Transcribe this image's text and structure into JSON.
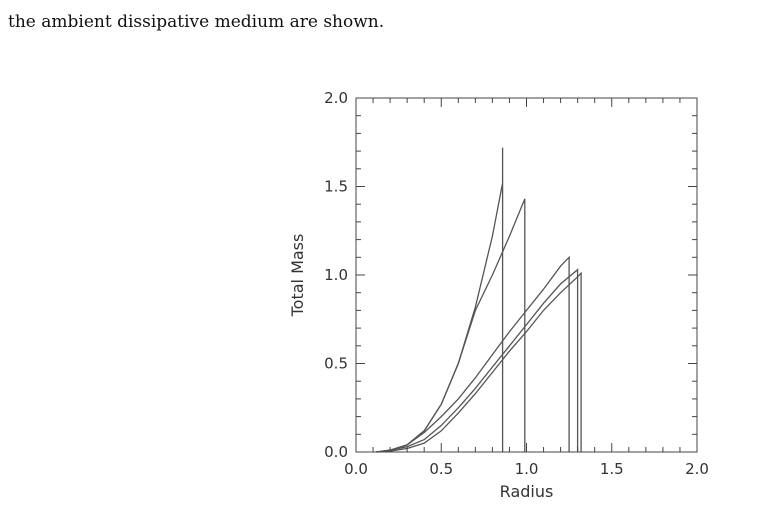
{
  "caption": "the ambient dissipative medium are shown.",
  "chart_data": {
    "type": "line",
    "xlabel": "Radius",
    "ylabel": "Total Mass",
    "xlim": [
      0.0,
      2.0
    ],
    "ylim": [
      0.0,
      2.0
    ],
    "xticks": [
      "0.0",
      "0.5",
      "1.0",
      "1.5",
      "2.0"
    ],
    "yticks": [
      "0.0",
      "0.5",
      "1.0",
      "1.5",
      "2.0"
    ],
    "grid": false,
    "line_color": "#555555",
    "series": [
      {
        "points": [
          [
            0.12,
            0.0
          ],
          [
            0.2,
            0.01
          ],
          [
            0.3,
            0.04
          ],
          [
            0.4,
            0.12
          ],
          [
            0.5,
            0.27
          ],
          [
            0.6,
            0.5
          ],
          [
            0.7,
            0.82
          ],
          [
            0.8,
            1.22
          ],
          [
            0.86,
            1.52
          ],
          [
            0.86,
            1.72
          ],
          [
            0.86,
            0.0
          ]
        ]
      },
      {
        "points": [
          [
            0.12,
            0.0
          ],
          [
            0.2,
            0.01
          ],
          [
            0.3,
            0.04
          ],
          [
            0.4,
            0.12
          ],
          [
            0.5,
            0.27
          ],
          [
            0.6,
            0.5
          ],
          [
            0.7,
            0.8
          ],
          [
            0.8,
            1.0
          ],
          [
            0.9,
            1.22
          ],
          [
            0.99,
            1.43
          ],
          [
            0.99,
            0.0
          ]
        ]
      },
      {
        "points": [
          [
            0.12,
            0.0
          ],
          [
            0.2,
            0.01
          ],
          [
            0.3,
            0.04
          ],
          [
            0.4,
            0.11
          ],
          [
            0.5,
            0.2
          ],
          [
            0.6,
            0.3
          ],
          [
            0.7,
            0.42
          ],
          [
            0.8,
            0.55
          ],
          [
            0.9,
            0.68
          ],
          [
            1.0,
            0.8
          ],
          [
            1.1,
            0.92
          ],
          [
            1.2,
            1.05
          ],
          [
            1.25,
            1.1
          ],
          [
            1.25,
            0.0
          ]
        ]
      },
      {
        "points": [
          [
            0.12,
            0.0
          ],
          [
            0.2,
            0.01
          ],
          [
            0.3,
            0.03
          ],
          [
            0.4,
            0.07
          ],
          [
            0.5,
            0.15
          ],
          [
            0.6,
            0.25
          ],
          [
            0.7,
            0.36
          ],
          [
            0.8,
            0.48
          ],
          [
            0.9,
            0.6
          ],
          [
            1.0,
            0.72
          ],
          [
            1.1,
            0.84
          ],
          [
            1.2,
            0.95
          ],
          [
            1.3,
            1.03
          ],
          [
            1.3,
            0.0
          ]
        ]
      },
      {
        "points": [
          [
            0.12,
            0.0
          ],
          [
            0.2,
            0.005
          ],
          [
            0.3,
            0.02
          ],
          [
            0.4,
            0.05
          ],
          [
            0.5,
            0.12
          ],
          [
            0.6,
            0.22
          ],
          [
            0.7,
            0.33
          ],
          [
            0.8,
            0.45
          ],
          [
            0.9,
            0.57
          ],
          [
            1.0,
            0.68
          ],
          [
            1.1,
            0.8
          ],
          [
            1.2,
            0.9
          ],
          [
            1.3,
            0.99
          ],
          [
            1.32,
            1.01
          ],
          [
            1.32,
            0.0
          ]
        ]
      }
    ]
  }
}
